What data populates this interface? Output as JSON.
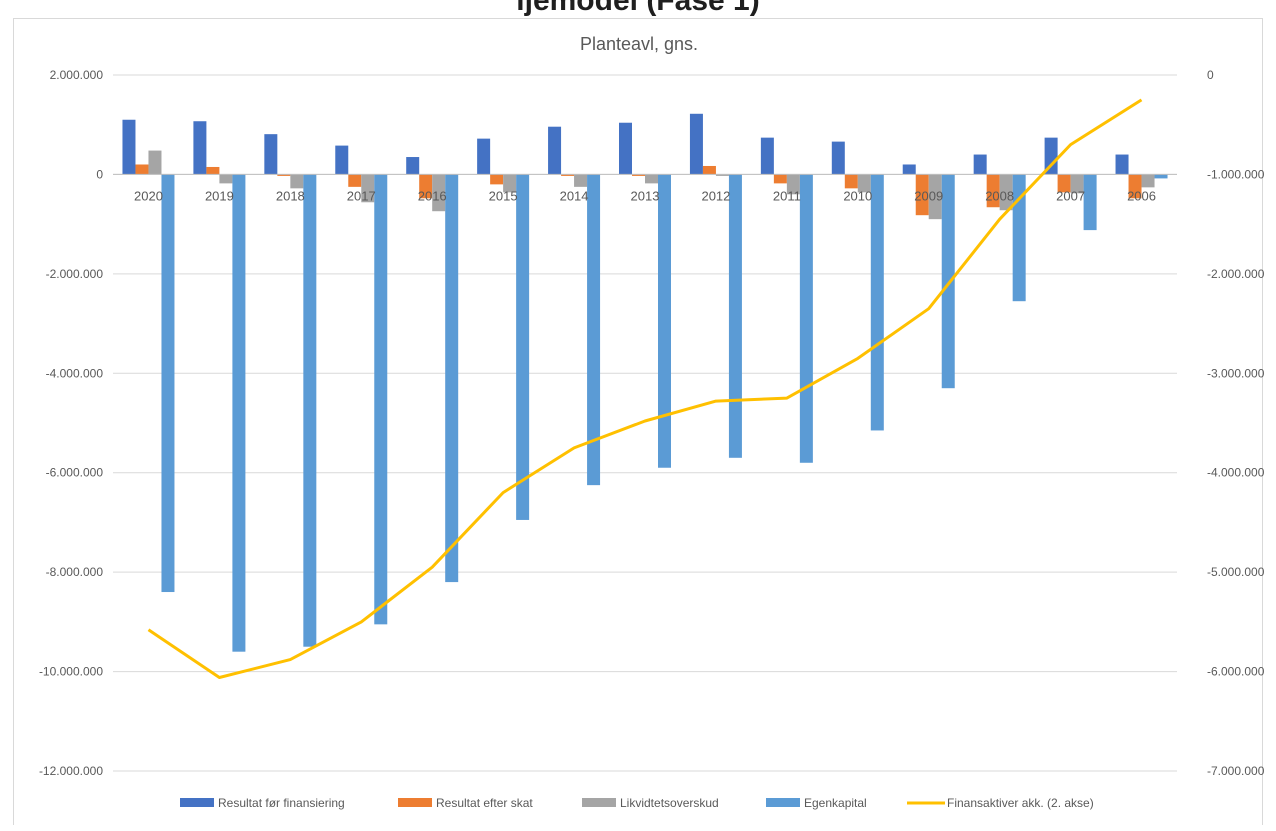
{
  "page": {
    "partial_heading": "ljemodel (Fase 1)"
  },
  "chart_data": {
    "type": "bar",
    "title": "Planteavl, gns.",
    "categories": [
      "2020",
      "2019",
      "2018",
      "2017",
      "2016",
      "2015",
      "2014",
      "2013",
      "2012",
      "2011",
      "2010",
      "2009",
      "2008",
      "2007",
      "2006"
    ],
    "y_left": {
      "ylim": [
        -12000000,
        2000000
      ],
      "ticks": [
        2000000,
        0,
        -2000000,
        -4000000,
        -6000000,
        -8000000,
        -10000000,
        -12000000
      ],
      "tick_labels": [
        "2.000.000",
        "0",
        "-2.000.000",
        "-4.000.000",
        "-6.000.000",
        "-8.000.000",
        "-10.000.000",
        "-12.000.000"
      ]
    },
    "y_right": {
      "ylim": [
        -7000000,
        0
      ],
      "ticks": [
        0,
        -1000000,
        -2000000,
        -3000000,
        -4000000,
        -5000000,
        -6000000,
        -7000000
      ],
      "tick_labels": [
        "0",
        "-1.000.000",
        "-2.000.000",
        "-3.000.000",
        "-4.000.000",
        "-5.000.000",
        "-6.000.000",
        "-7.000.000"
      ]
    },
    "series": [
      {
        "name": "Resultat før finansiering",
        "type": "bar",
        "axis": "left",
        "color": "#4472c4",
        "values": [
          1100000,
          1070000,
          810000,
          580000,
          350000,
          720000,
          960000,
          1040000,
          1220000,
          740000,
          660000,
          200000,
          400000,
          740000,
          400000
        ]
      },
      {
        "name": "Resultat efter skat",
        "type": "bar",
        "axis": "left",
        "color": "#ed7d31",
        "values": [
          200000,
          150000,
          -30000,
          -250000,
          -480000,
          -200000,
          -30000,
          -30000,
          170000,
          -180000,
          -280000,
          -820000,
          -660000,
          -360000,
          -480000
        ]
      },
      {
        "name": "Likvidtetsoverskud",
        "type": "bar",
        "axis": "left",
        "color": "#a5a5a5",
        "values": [
          480000,
          -180000,
          -280000,
          -560000,
          -740000,
          -360000,
          -250000,
          -180000,
          -30000,
          -400000,
          -360000,
          -900000,
          -720000,
          -380000,
          -260000
        ]
      },
      {
        "name": "Egenkapital",
        "type": "bar",
        "axis": "left",
        "color": "#5b9bd5",
        "values": [
          -8400000,
          -9600000,
          -9500000,
          -9050000,
          -8200000,
          -6950000,
          -6250000,
          -5900000,
          -5700000,
          -5800000,
          -5150000,
          -4300000,
          -2550000,
          -1120000,
          -80000
        ]
      },
      {
        "name": "Finansaktiver akk. (2. akse)",
        "type": "line",
        "axis": "right",
        "color": "#ffc000",
        "values": [
          -5580000,
          -6060000,
          -5880000,
          -5500000,
          -4950000,
          -4200000,
          -3750000,
          -3480000,
          -3280000,
          -3250000,
          -2850000,
          -2350000,
          -1450000,
          -700000,
          -250000
        ]
      }
    ],
    "legend_position": "bottom",
    "grid": "horizontal"
  }
}
